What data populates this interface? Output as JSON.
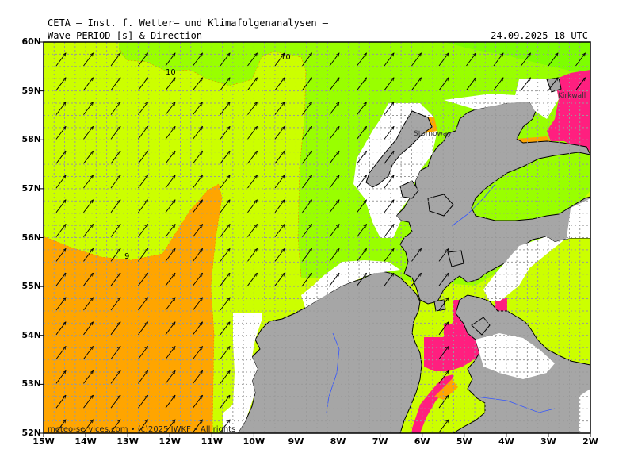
{
  "header": {
    "title": "CETA — Inst. f. Wetter— und Klimafolgenanalysen —",
    "parameter": "Wave PERIOD [s] & Direction",
    "datetime": "24.09.2025 18 UTC"
  },
  "map": {
    "lat_labels": [
      "60N",
      "59N",
      "58N",
      "57N",
      "56N",
      "55N",
      "54N",
      "53N",
      "52N"
    ],
    "lon_labels": [
      "15W",
      "14W",
      "13W",
      "12W",
      "11W",
      "10W",
      "9W",
      "8W",
      "7W",
      "6W",
      "5W",
      "4W",
      "3W",
      "2W"
    ],
    "contour_labels": [
      "10",
      "10",
      "9"
    ],
    "place_labels": [
      "Stornoway",
      "Kirkwall"
    ],
    "credit": "meteo-services.com • (c)2025 IWKF • All rights",
    "colors": {
      "period_10_plus": "#99ff00",
      "period_9_10": "#ccff00",
      "period_8_9": "#ffa500",
      "period_high": "#ff1f7f",
      "land": "#a6a6a6",
      "grid": "#9a9a9a"
    },
    "arrow_direction": "north-east"
  }
}
